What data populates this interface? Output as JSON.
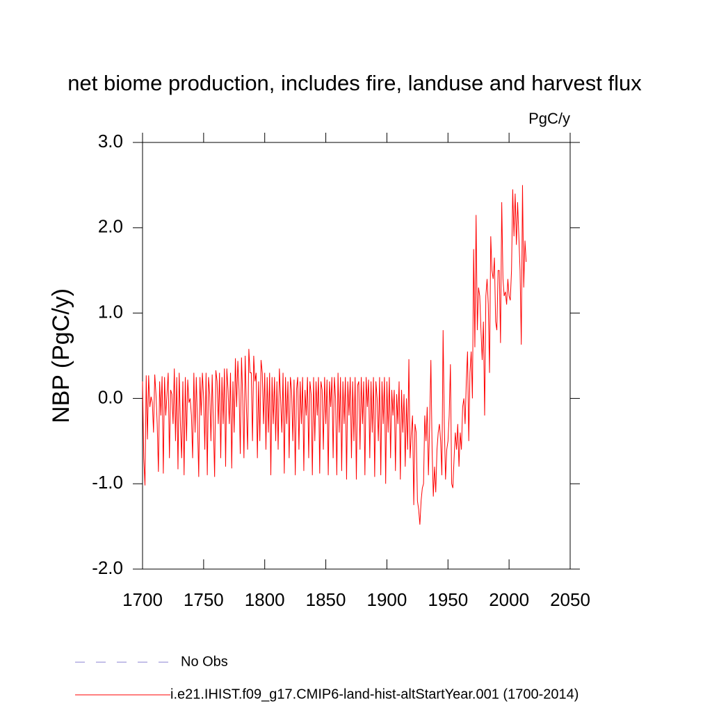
{
  "chart_data": {
    "type": "line",
    "title": "net biome production, includes fire, landuse and harvest flux",
    "units": "PgC/y",
    "y_label": "NBP  (PgC/y)",
    "xlim": [
      1700,
      2050
    ],
    "xticks": [
      1700,
      1750,
      1800,
      1850,
      1900,
      1950,
      2000,
      2050
    ],
    "ylim": [
      -2.0,
      3.0
    ],
    "yticks": [
      {
        "value": -2.0,
        "label": "-2.0"
      },
      {
        "value": -1.0,
        "label": "-1.0"
      },
      {
        "value": 0.0,
        "label": "0.0"
      },
      {
        "value": 1.0,
        "label": "1.0"
      },
      {
        "value": 2.0,
        "label": "2.0"
      },
      {
        "value": 3.0,
        "label": "3.0"
      }
    ],
    "reference": {
      "name": "No Obs",
      "color": "#8a7fd0",
      "dashed": true
    },
    "x": [
      1700,
      1701,
      1702,
      1703,
      1704,
      1705,
      1706,
      1707,
      1708,
      1709,
      1710,
      1711,
      1712,
      1713,
      1714,
      1715,
      1716,
      1717,
      1718,
      1719,
      1720,
      1721,
      1722,
      1723,
      1724,
      1725,
      1726,
      1727,
      1728,
      1729,
      1730,
      1731,
      1732,
      1733,
      1734,
      1735,
      1736,
      1737,
      1738,
      1739,
      1740,
      1741,
      1742,
      1743,
      1744,
      1745,
      1746,
      1747,
      1748,
      1749,
      1750,
      1751,
      1752,
      1753,
      1754,
      1755,
      1756,
      1757,
      1758,
      1759,
      1760,
      1761,
      1762,
      1763,
      1764,
      1765,
      1766,
      1767,
      1768,
      1769,
      1770,
      1771,
      1772,
      1773,
      1774,
      1775,
      1776,
      1777,
      1778,
      1779,
      1780,
      1781,
      1782,
      1783,
      1784,
      1785,
      1786,
      1787,
      1788,
      1789,
      1790,
      1791,
      1792,
      1793,
      1794,
      1795,
      1796,
      1797,
      1798,
      1799,
      1800,
      1801,
      1802,
      1803,
      1804,
      1805,
      1806,
      1807,
      1808,
      1809,
      1810,
      1811,
      1812,
      1813,
      1814,
      1815,
      1816,
      1817,
      1818,
      1819,
      1820,
      1821,
      1822,
      1823,
      1824,
      1825,
      1826,
      1827,
      1828,
      1829,
      1830,
      1831,
      1832,
      1833,
      1834,
      1835,
      1836,
      1837,
      1838,
      1839,
      1840,
      1841,
      1842,
      1843,
      1844,
      1845,
      1846,
      1847,
      1848,
      1849,
      1850,
      1851,
      1852,
      1853,
      1854,
      1855,
      1856,
      1857,
      1858,
      1859,
      1860,
      1861,
      1862,
      1863,
      1864,
      1865,
      1866,
      1867,
      1868,
      1869,
      1870,
      1871,
      1872,
      1873,
      1874,
      1875,
      1876,
      1877,
      1878,
      1879,
      1880,
      1881,
      1882,
      1883,
      1884,
      1885,
      1886,
      1887,
      1888,
      1889,
      1890,
      1891,
      1892,
      1893,
      1894,
      1895,
      1896,
      1897,
      1898,
      1899,
      1900,
      1901,
      1902,
      1903,
      1904,
      1905,
      1906,
      1907,
      1908,
      1909,
      1910,
      1911,
      1912,
      1913,
      1914,
      1915,
      1916,
      1917,
      1918,
      1919,
      1920,
      1921,
      1922,
      1923,
      1924,
      1925,
      1926,
      1927,
      1928,
      1929,
      1930,
      1931,
      1932,
      1933,
      1934,
      1935,
      1936,
      1937,
      1938,
      1939,
      1940,
      1941,
      1942,
      1943,
      1944,
      1945,
      1946,
      1947,
      1948,
      1949,
      1950,
      1951,
      1952,
      1953,
      1954,
      1955,
      1956,
      1957,
      1958,
      1959,
      1960,
      1961,
      1962,
      1963,
      1964,
      1965,
      1966,
      1967,
      1968,
      1969,
      1970,
      1971,
      1972,
      1973,
      1974,
      1975,
      1976,
      1977,
      1978,
      1979,
      1980,
      1981,
      1982,
      1983,
      1984,
      1985,
      1986,
      1987,
      1988,
      1989,
      1990,
      1991,
      1992,
      1993,
      1994,
      1995,
      1996,
      1997,
      1998,
      1999,
      2000,
      2001,
      2002,
      2003,
      2004,
      2005,
      2006,
      2007,
      2008,
      2009,
      2010,
      2011,
      2012,
      2013,
      2014
    ],
    "series": [
      {
        "name": "i.e21.IHIST.f09_g17.CMIP6-land-hist-altStartYear.001 (1700-2014)",
        "color": "#ff0000",
        "values": [
          0.2,
          -0.7,
          -1.02,
          0.27,
          -0.48,
          0.27,
          -0.1,
          0.02,
          -0.05,
          -0.4,
          0.28,
          0.05,
          -0.3,
          -0.86,
          0.2,
          -0.2,
          0.26,
          -0.88,
          0.25,
          -0.2,
          0.05,
          0.3,
          -0.7,
          0.1,
          0.05,
          -0.3,
          0.35,
          -0.5,
          0.25,
          -0.83,
          0.3,
          -0.3,
          -0.7,
          0.2,
          -0.9,
          0.25,
          -0.5,
          0.22,
          -0.05,
          0.0,
          -0.2,
          -0.7,
          0.3,
          -0.4,
          0.25,
          -0.3,
          -0.92,
          0.25,
          -0.2,
          0.3,
          0.0,
          -0.6,
          0.3,
          -0.9,
          0.25,
          0.05,
          -0.5,
          0.28,
          -0.3,
          -0.92,
          0.33,
          0.2,
          -0.3,
          0.3,
          -0.7,
          0.25,
          -0.3,
          0.35,
          -0.8,
          0.35,
          0.1,
          -0.3,
          0.3,
          -0.82,
          0.2,
          -0.4,
          0.47,
          -0.1,
          0.44,
          0.1,
          -0.65,
          0.48,
          0.0,
          -0.7,
          0.5,
          -0.1,
          -0.6,
          0.58,
          0.3,
          0.3,
          -0.5,
          0.5,
          0.2,
          0.3,
          -0.7,
          0.2,
          -0.5,
          0.45,
          0.3,
          -0.3,
          0.3,
          -0.6,
          0.25,
          -0.4,
          0.3,
          -0.9,
          0.25,
          -0.3,
          0.25,
          -0.5,
          0.2,
          -0.6,
          0.35,
          0.0,
          -0.4,
          0.3,
          -0.88,
          0.25,
          -0.3,
          0.2,
          -0.7,
          0.25,
          0.1,
          -0.5,
          0.22,
          -0.9,
          0.1,
          0.25,
          -0.6,
          0.2,
          -0.3,
          0.25,
          -0.85,
          0.1,
          -0.2,
          0.25,
          -0.7,
          0.2,
          0.05,
          -0.9,
          0.25,
          -0.5,
          0.2,
          -0.2,
          0.25,
          -0.88,
          0.2,
          0.1,
          -0.6,
          0.25,
          -0.3,
          0.22,
          -0.9,
          0.2,
          -0.1,
          0.25,
          -0.7,
          0.25,
          0.0,
          -0.9,
          0.3,
          -0.4,
          0.25,
          -0.85,
          0.2,
          -0.3,
          0.25,
          -0.95,
          0.2,
          -0.2,
          0.25,
          -0.7,
          0.2,
          -0.5,
          0.25,
          -0.95,
          0.15,
          0.2,
          -0.6,
          0.25,
          -0.3,
          0.2,
          -0.9,
          0.25,
          -0.1,
          0.22,
          -0.7,
          0.2,
          -0.4,
          0.25,
          -0.92,
          0.2,
          0.0,
          -0.5,
          0.25,
          -0.9,
          0.2,
          -0.3,
          0.25,
          -1.0,
          0.2,
          -0.4,
          0.25,
          -0.7,
          0.1,
          -0.2,
          0.1,
          -0.85,
          0.05,
          -0.3,
          0.2,
          -0.95,
          0.1,
          -0.4,
          0.05,
          -0.8,
          0.0,
          -0.6,
          0.46,
          -0.7,
          -0.4,
          -0.2,
          -1.25,
          -0.3,
          -0.4,
          -1.2,
          -1.3,
          -1.48,
          -1.2,
          -1.05,
          -1.0,
          -0.2,
          -0.5,
          -0.1,
          -0.9,
          -0.3,
          0.45,
          -0.6,
          -1.15,
          -0.8,
          -1.1,
          -0.6,
          -0.4,
          -0.3,
          -0.5,
          -0.9,
          0.8,
          -0.3,
          -0.95,
          -0.6,
          -0.5,
          -0.2,
          0.4,
          -1.0,
          -1.05,
          -0.7,
          -0.4,
          -0.6,
          -0.3,
          -0.8,
          -0.4,
          -0.6,
          -0.1,
          0.0,
          -0.3,
          0.2,
          0.55,
          -0.5,
          0.3,
          0.55,
          0.0,
          1.75,
          0.6,
          2.15,
          0.8,
          1.3,
          1.2,
          0.8,
          0.45,
          0.9,
          -0.2,
          1.2,
          1.4,
          1.1,
          0.3,
          1.9,
          1.5,
          1.4,
          1.65,
          0.9,
          0.8,
          1.5,
          1.5,
          0.65,
          2.3,
          1.4,
          1.2,
          1.25,
          1.1,
          1.4,
          1.2,
          1.15,
          1.5,
          2.45,
          1.9,
          2.4,
          1.8,
          2.3,
          1.9,
          1.5,
          0.63,
          2.5,
          1.3,
          1.85,
          1.6
        ]
      }
    ]
  }
}
